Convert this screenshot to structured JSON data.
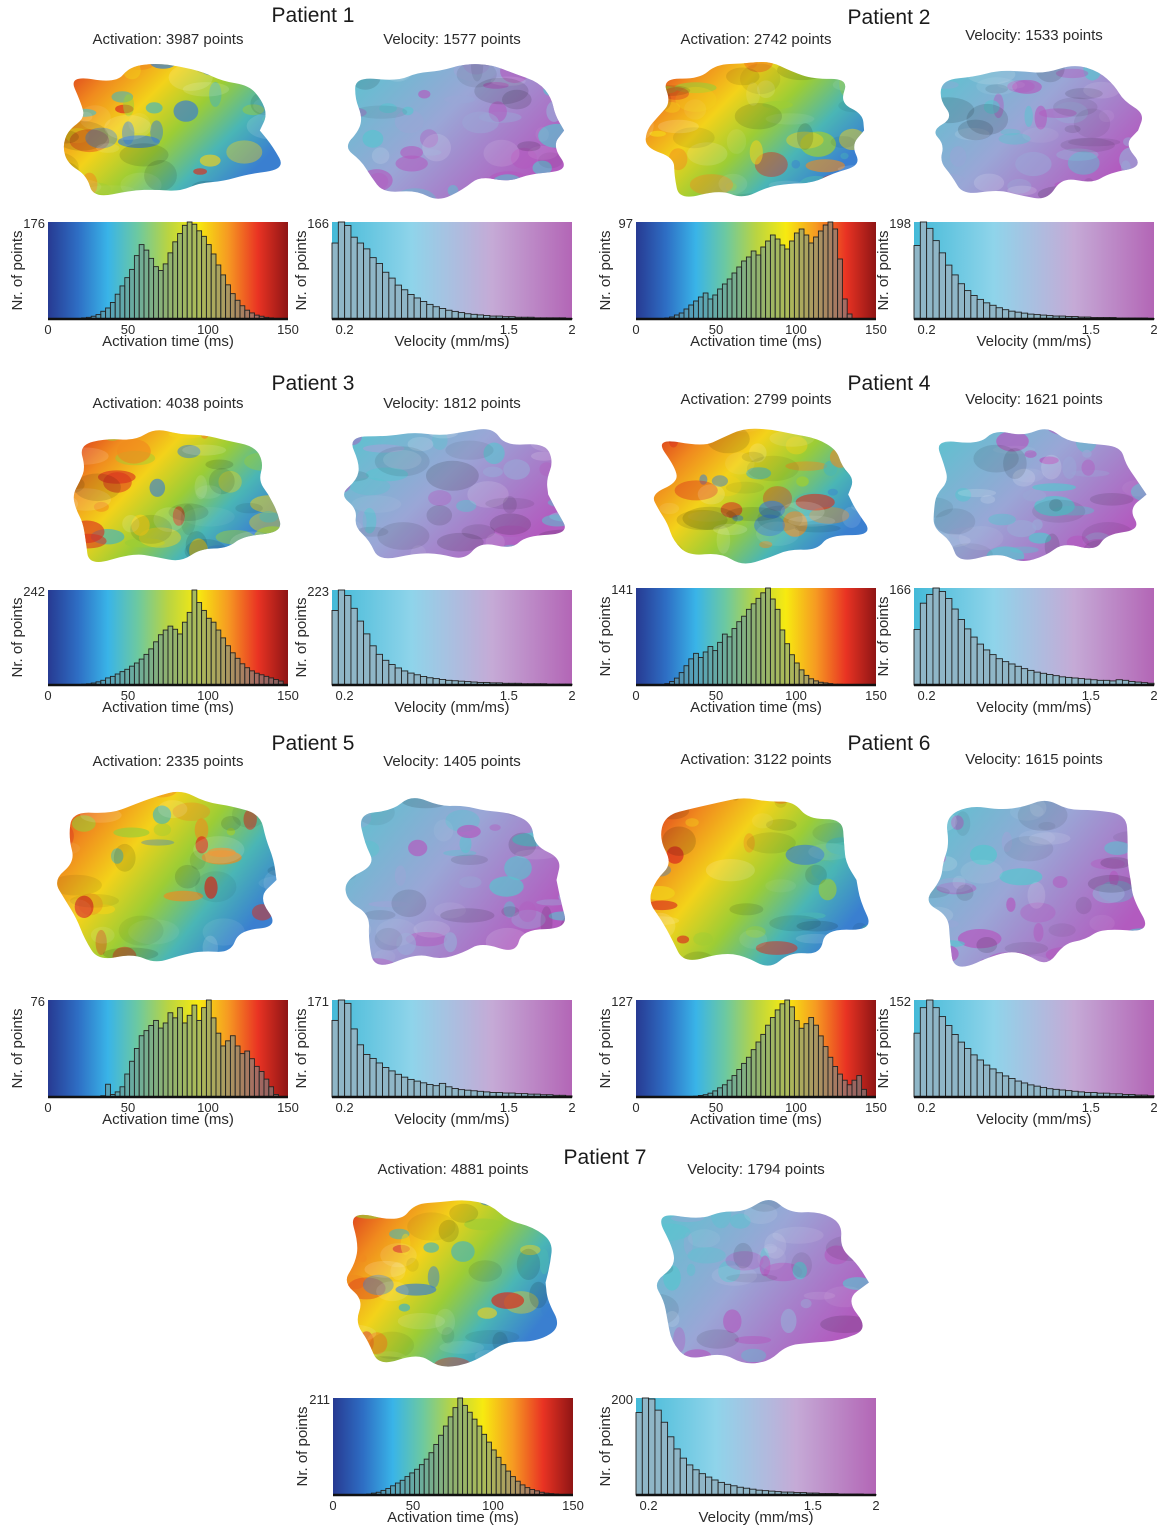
{
  "figure": {
    "ylabel": "Nr. of points",
    "act_xlabel": "Activation time (ms)",
    "vel_xlabel": "Velocity (mm/ms)",
    "act_ticks": [
      "0",
      "50",
      "100",
      "150"
    ],
    "vel_ticks": [
      "0.2",
      "1.5",
      "2"
    ],
    "colors": {
      "activation_scale": [
        "#273a92",
        "#2e6ec4",
        "#39b4e8",
        "#6dc9a0",
        "#b9d442",
        "#f7ea10",
        "#f69a22",
        "#e93323",
        "#8f1515"
      ],
      "velocity_scale": [
        "#44bad8",
        "#8fd4ea",
        "#c5aad6",
        "#b366b6"
      ],
      "mesh_activation": [
        "#d92f1f",
        "#f08a1e",
        "#f3d21a",
        "#9ccd35",
        "#4ab6b5",
        "#3a7fd0"
      ],
      "mesh_velocity": [
        "#58c4cf",
        "#9aa6d6",
        "#b25bbf"
      ]
    }
  },
  "patients": [
    {
      "title": "Patient 1",
      "act_label": "Activation: 3987 points",
      "vel_label": "Velocity: 1577 points",
      "act_ymax_label": "176",
      "vel_ymax_label": "166"
    },
    {
      "title": "Patient 2",
      "act_label": "Activation: 2742 points",
      "vel_label": "Velocity: 1533 points",
      "act_ymax_label": "97",
      "vel_ymax_label": "198"
    },
    {
      "title": "Patient 3",
      "act_label": "Activation: 4038 points",
      "vel_label": "Velocity: 1812 points",
      "act_ymax_label": "242",
      "vel_ymax_label": "223"
    },
    {
      "title": "Patient 4",
      "act_label": "Activation: 2799 points",
      "vel_label": "Velocity: 1621 points",
      "act_ymax_label": "141",
      "vel_ymax_label": "166"
    },
    {
      "title": "Patient 5",
      "act_label": "Activation: 2335 points",
      "vel_label": "Velocity: 1405 points",
      "act_ymax_label": "76",
      "vel_ymax_label": "171"
    },
    {
      "title": "Patient 6",
      "act_label": "Activation: 3122 points",
      "vel_label": "Velocity: 1615 points",
      "act_ymax_label": "127",
      "vel_ymax_label": "152"
    },
    {
      "title": "Patient 7",
      "act_label": "Activation: 4881 points",
      "vel_label": "Velocity: 1794 points",
      "act_ymax_label": "211",
      "vel_ymax_label": "200"
    }
  ],
  "chart_data": [
    {
      "type": "bar",
      "panel": "patient-1-activation",
      "xlabel": "Activation time (ms)",
      "ylabel": "Nr. of points",
      "xlim": [
        0,
        150
      ],
      "ylim": [
        0,
        176
      ],
      "bin_width": 3,
      "x_start": 0,
      "values": [
        0,
        0,
        0,
        0,
        0,
        0,
        1,
        2,
        3,
        5,
        8,
        14,
        20,
        30,
        45,
        60,
        75,
        90,
        115,
        135,
        125,
        110,
        95,
        88,
        100,
        120,
        140,
        155,
        170,
        176,
        172,
        160,
        150,
        135,
        118,
        98,
        80,
        62,
        46,
        34,
        24,
        16,
        11,
        7,
        5,
        3,
        2,
        1,
        0,
        0
      ]
    },
    {
      "type": "bar",
      "panel": "patient-1-velocity",
      "xlabel": "Velocity (mm/ms)",
      "ylabel": "Nr. of points",
      "xlim": [
        0.1,
        2
      ],
      "ylim": [
        0,
        166
      ],
      "bin_width": 0.05,
      "x_start": 0.1,
      "values": [
        130,
        166,
        160,
        140,
        130,
        120,
        105,
        95,
        80,
        70,
        58,
        50,
        42,
        36,
        30,
        25,
        21,
        18,
        15,
        13,
        11,
        9,
        8,
        7,
        6,
        5,
        5,
        4,
        4,
        3,
        3,
        3,
        2,
        2,
        2,
        2,
        2,
        1
      ]
    },
    {
      "type": "bar",
      "panel": "patient-2-activation",
      "xlabel": "Activation time (ms)",
      "ylabel": "Nr. of points",
      "xlim": [
        0,
        150
      ],
      "ylim": [
        0,
        97
      ],
      "bin_width": 3,
      "x_start": 0,
      "values": [
        0,
        0,
        0,
        0,
        0,
        0,
        1,
        2,
        4,
        6,
        10,
        14,
        18,
        22,
        26,
        20,
        24,
        30,
        35,
        40,
        46,
        52,
        58,
        62,
        68,
        64,
        72,
        78,
        84,
        80,
        74,
        70,
        78,
        86,
        90,
        84,
        76,
        82,
        88,
        94,
        97,
        90,
        60,
        20,
        5,
        0,
        0,
        0,
        0,
        0
      ]
    },
    {
      "type": "bar",
      "panel": "patient-2-velocity",
      "xlabel": "Velocity (mm/ms)",
      "ylabel": "Nr. of points",
      "xlim": [
        0.1,
        2
      ],
      "ylim": [
        0,
        198
      ],
      "bin_width": 0.05,
      "x_start": 0.1,
      "values": [
        150,
        198,
        185,
        160,
        135,
        110,
        90,
        72,
        58,
        48,
        40,
        33,
        28,
        23,
        19,
        16,
        14,
        12,
        10,
        9,
        8,
        7,
        6,
        6,
        5,
        5,
        4,
        4,
        3,
        3,
        3,
        3,
        2,
        2,
        2,
        2,
        2,
        1
      ]
    },
    {
      "type": "bar",
      "panel": "patient-3-activation",
      "xlabel": "Activation time (ms)",
      "ylabel": "Nr. of points",
      "xlim": [
        0,
        150
      ],
      "ylim": [
        0,
        242
      ],
      "bin_width": 3,
      "x_start": 0,
      "values": [
        0,
        0,
        0,
        0,
        0,
        0,
        1,
        2,
        3,
        5,
        8,
        12,
        18,
        22,
        28,
        34,
        40,
        48,
        56,
        66,
        78,
        92,
        110,
        128,
        140,
        150,
        142,
        130,
        160,
        185,
        242,
        210,
        190,
        170,
        160,
        140,
        120,
        100,
        82,
        68,
        54,
        44,
        36,
        30,
        26,
        22,
        18,
        14,
        10,
        0
      ]
    },
    {
      "type": "bar",
      "panel": "patient-3-velocity",
      "xlabel": "Velocity (mm/ms)",
      "ylabel": "Nr. of points",
      "xlim": [
        0.1,
        2
      ],
      "ylim": [
        0,
        223
      ],
      "bin_width": 0.05,
      "x_start": 0.1,
      "values": [
        175,
        223,
        210,
        180,
        150,
        120,
        92,
        72,
        58,
        48,
        40,
        33,
        28,
        24,
        20,
        17,
        15,
        13,
        11,
        10,
        9,
        8,
        7,
        6,
        6,
        5,
        5,
        4,
        4,
        4,
        3,
        3,
        3,
        3,
        2,
        2,
        2,
        2
      ]
    },
    {
      "type": "bar",
      "panel": "patient-4-activation",
      "xlabel": "Activation time (ms)",
      "ylabel": "Nr. of points",
      "xlim": [
        0,
        150
      ],
      "ylim": [
        0,
        141
      ],
      "bin_width": 3,
      "x_start": 0,
      "values": [
        0,
        0,
        0,
        0,
        0,
        0,
        2,
        5,
        10,
        18,
        28,
        38,
        46,
        40,
        48,
        56,
        50,
        62,
        74,
        70,
        82,
        92,
        100,
        110,
        118,
        126,
        134,
        141,
        125,
        110,
        80,
        60,
        44,
        32,
        22,
        14,
        9,
        6,
        4,
        3,
        2,
        1,
        1,
        0,
        0,
        0,
        0,
        0,
        0,
        0
      ]
    },
    {
      "type": "bar",
      "panel": "patient-4-velocity",
      "xlabel": "Velocity (mm/ms)",
      "ylabel": "Nr. of points",
      "xlim": [
        0.1,
        2
      ],
      "ylim": [
        0,
        166
      ],
      "bin_width": 0.05,
      "x_start": 0.1,
      "values": [
        95,
        140,
        155,
        166,
        160,
        148,
        130,
        112,
        96,
        82,
        70,
        60,
        52,
        45,
        40,
        36,
        32,
        28,
        25,
        22,
        20,
        18,
        16,
        14,
        13,
        12,
        11,
        10,
        9,
        8,
        8,
        7,
        9,
        8,
        6,
        5,
        4,
        3
      ]
    },
    {
      "type": "bar",
      "panel": "patient-5-activation",
      "xlabel": "Activation time (ms)",
      "ylabel": "Nr. of points",
      "xlim": [
        0,
        150
      ],
      "ylim": [
        0,
        76
      ],
      "bin_width": 3,
      "x_start": 0,
      "values": [
        0,
        0,
        0,
        0,
        0,
        0,
        0,
        0,
        0,
        0,
        0,
        1,
        10,
        2,
        4,
        8,
        18,
        28,
        38,
        48,
        52,
        56,
        60,
        54,
        58,
        66,
        62,
        70,
        58,
        64,
        72,
        60,
        70,
        76,
        62,
        50,
        40,
        44,
        48,
        40,
        34,
        36,
        30,
        24,
        20,
        14,
        8,
        2,
        0,
        0
      ]
    },
    {
      "type": "bar",
      "panel": "patient-5-velocity",
      "xlabel": "Velocity (mm/ms)",
      "ylabel": "Nr. of points",
      "xlim": [
        0.1,
        2
      ],
      "ylim": [
        0,
        171
      ],
      "bin_width": 0.05,
      "x_start": 0.1,
      "values": [
        135,
        171,
        165,
        120,
        92,
        75,
        68,
        60,
        52,
        46,
        40,
        35,
        31,
        28,
        25,
        22,
        20,
        24,
        18,
        15,
        13,
        12,
        11,
        10,
        9,
        8,
        8,
        7,
        7,
        6,
        6,
        5,
        5,
        4,
        4,
        3,
        3,
        2
      ]
    },
    {
      "type": "bar",
      "panel": "patient-6-activation",
      "xlabel": "Activation time (ms)",
      "ylabel": "Nr. of points",
      "xlim": [
        0,
        150
      ],
      "ylim": [
        0,
        127
      ],
      "bin_width": 3,
      "x_start": 0,
      "values": [
        0,
        0,
        0,
        0,
        0,
        0,
        0,
        0,
        0,
        0,
        0,
        0,
        1,
        2,
        3,
        5,
        8,
        12,
        16,
        22,
        28,
        36,
        44,
        52,
        62,
        72,
        82,
        94,
        104,
        114,
        122,
        127,
        118,
        100,
        90,
        96,
        104,
        94,
        80,
        66,
        52,
        40,
        30,
        22,
        16,
        22,
        28,
        10,
        0,
        0
      ]
    },
    {
      "type": "bar",
      "panel": "patient-6-velocity",
      "xlabel": "Velocity (mm/ms)",
      "ylabel": "Nr. of points",
      "xlim": [
        0.1,
        2
      ],
      "ylim": [
        0,
        152
      ],
      "bin_width": 0.05,
      "x_start": 0.1,
      "values": [
        100,
        140,
        152,
        140,
        126,
        112,
        98,
        86,
        76,
        66,
        58,
        50,
        44,
        38,
        33,
        29,
        25,
        22,
        19,
        17,
        15,
        13,
        12,
        11,
        10,
        9,
        8,
        7,
        7,
        6,
        6,
        5,
        5,
        4,
        4,
        3,
        3,
        2
      ]
    },
    {
      "type": "bar",
      "panel": "patient-7-activation",
      "xlabel": "Activation time (ms)",
      "ylabel": "Nr. of points",
      "xlim": [
        0,
        150
      ],
      "ylim": [
        0,
        211
      ],
      "bin_width": 3,
      "x_start": 0,
      "values": [
        0,
        0,
        0,
        0,
        0,
        0,
        1,
        2,
        4,
        6,
        10,
        14,
        20,
        26,
        32,
        40,
        48,
        56,
        66,
        78,
        92,
        110,
        130,
        150,
        170,
        190,
        211,
        195,
        180,
        165,
        150,
        132,
        115,
        98,
        82,
        66,
        52,
        40,
        30,
        22,
        16,
        12,
        9,
        6,
        4,
        3,
        2,
        1,
        0,
        0
      ]
    },
    {
      "type": "bar",
      "panel": "patient-7-velocity",
      "xlabel": "Velocity (mm/ms)",
      "ylabel": "Nr. of points",
      "xlim": [
        0.1,
        2
      ],
      "ylim": [
        0,
        200
      ],
      "bin_width": 0.05,
      "x_start": 0.1,
      "values": [
        170,
        200,
        198,
        175,
        150,
        120,
        95,
        76,
        62,
        52,
        44,
        37,
        31,
        26,
        22,
        19,
        16,
        14,
        12,
        10,
        9,
        8,
        7,
        6,
        6,
        5,
        5,
        4,
        4,
        3,
        3,
        3,
        2,
        2,
        2,
        2,
        1,
        1
      ]
    }
  ]
}
